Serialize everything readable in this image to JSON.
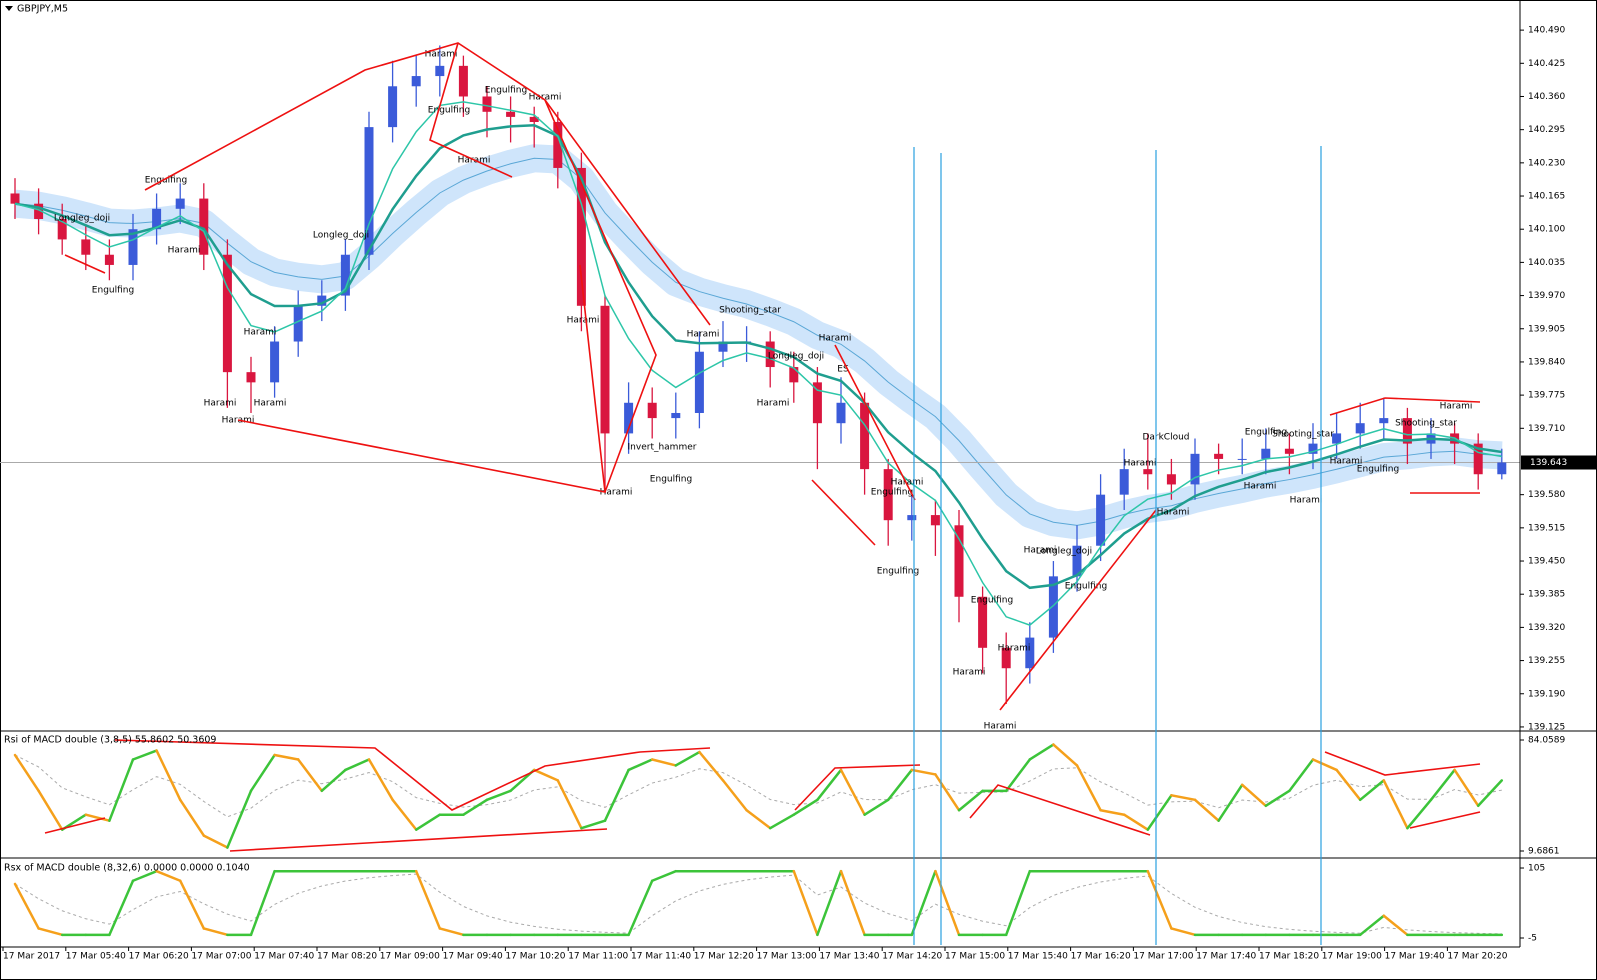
{
  "chart_data": [
    {
      "type": "candlestick",
      "title": "GBPJPY,M5",
      "open": [
        140.17,
        140.15,
        140.12,
        140.08,
        140.05,
        140.03,
        140.1,
        140.14,
        140.16,
        140.05,
        139.82,
        139.8,
        139.88,
        139.95,
        139.97,
        140.05,
        140.3,
        140.38,
        140.4,
        140.42,
        140.36,
        140.33,
        140.32,
        140.31,
        140.22,
        139.95,
        139.7,
        139.76,
        139.73,
        139.74,
        139.86,
        139.88,
        139.88,
        139.83,
        139.8,
        139.72,
        139.76,
        139.63,
        139.53,
        139.54,
        139.52,
        139.38,
        139.28,
        139.24,
        139.3,
        139.42,
        139.48,
        139.58,
        139.63,
        139.62,
        139.6,
        139.66,
        139.65,
        139.65,
        139.67,
        139.66,
        139.68,
        139.7,
        139.72,
        139.73,
        139.68,
        139.7,
        139.68,
        139.62
      ],
      "high": [
        140.2,
        140.18,
        140.15,
        140.11,
        140.08,
        140.13,
        140.17,
        140.19,
        140.19,
        140.08,
        139.85,
        139.91,
        139.98,
        140.0,
        140.08,
        140.33,
        140.43,
        140.44,
        140.46,
        140.44,
        140.38,
        140.36,
        140.34,
        140.33,
        140.25,
        139.97,
        139.8,
        139.79,
        139.78,
        139.9,
        139.92,
        139.91,
        139.9,
        139.86,
        139.83,
        139.81,
        139.78,
        139.65,
        139.58,
        139.57,
        139.55,
        139.4,
        139.31,
        139.33,
        139.45,
        139.52,
        139.62,
        139.67,
        139.7,
        139.65,
        139.69,
        139.68,
        139.69,
        139.71,
        139.7,
        139.72,
        139.74,
        139.76,
        139.77,
        139.75,
        139.73,
        139.72,
        139.7,
        139.67
      ],
      "low": [
        140.12,
        140.09,
        140.05,
        140.02,
        140.0,
        140.0,
        140.07,
        140.11,
        140.02,
        139.75,
        139.74,
        139.77,
        139.85,
        139.92,
        139.94,
        140.02,
        140.27,
        140.34,
        140.36,
        140.32,
        140.28,
        140.27,
        140.26,
        140.18,
        139.9,
        139.59,
        139.66,
        139.69,
        139.69,
        139.71,
        139.83,
        139.84,
        139.79,
        139.76,
        139.63,
        139.68,
        139.58,
        139.48,
        139.49,
        139.46,
        139.33,
        139.23,
        139.17,
        139.21,
        139.27,
        139.39,
        139.45,
        139.55,
        139.59,
        139.57,
        139.57,
        139.62,
        139.62,
        139.62,
        139.62,
        139.63,
        139.65,
        139.67,
        139.69,
        139.64,
        139.65,
        139.64,
        139.59,
        139.61
      ],
      "close": [
        140.15,
        140.12,
        140.08,
        140.05,
        140.03,
        140.1,
        140.14,
        140.16,
        140.05,
        139.82,
        139.8,
        139.88,
        139.95,
        139.97,
        140.05,
        140.3,
        140.38,
        140.4,
        140.42,
        140.36,
        140.33,
        140.32,
        140.31,
        140.22,
        139.95,
        139.7,
        139.76,
        139.73,
        139.74,
        139.86,
        139.88,
        139.88,
        139.83,
        139.8,
        139.72,
        139.76,
        139.63,
        139.53,
        139.54,
        139.52,
        139.38,
        139.28,
        139.24,
        139.3,
        139.42,
        139.48,
        139.58,
        139.63,
        139.62,
        139.6,
        139.66,
        139.65,
        139.65,
        139.67,
        139.66,
        139.68,
        139.7,
        139.72,
        139.73,
        139.68,
        139.7,
        139.68,
        139.62,
        139.643
      ],
      "up_color": "#3b5bd9",
      "down_color": "#d9163f",
      "current_price": 139.643,
      "ylim": [
        139.119,
        140.549
      ],
      "yticks": [
        {
          "value": 140.49,
          "label": "140.490"
        },
        140.425,
        {
          "value": 140.36,
          "label": "140.360"
        },
        140.295,
        {
          "value": 140.23,
          "label": "140.230"
        },
        140.165,
        {
          "value": 140.1,
          "label": "140.100"
        },
        140.035,
        {
          "value": 139.97,
          "label": "139.970"
        },
        139.905,
        {
          "value": 139.84,
          "label": "139.840"
        },
        139.775,
        {
          "value": 139.71,
          "label": "139.710"
        },
        {
          "value": 139.58,
          "label": "139.580"
        },
        139.515,
        {
          "value": 139.45,
          "label": "139.450"
        },
        139.385,
        {
          "value": 139.32,
          "label": "139.320"
        },
        139.255,
        {
          "value": 139.19,
          "label": "139.190"
        },
        139.125
      ]
    },
    {
      "type": "line",
      "title": "Rsi of MACD double (3,8,5) 55.8602 50.3609",
      "values": [
        74,
        50,
        24,
        34,
        30,
        71,
        77,
        44,
        20,
        12,
        50,
        74,
        71,
        50,
        64,
        71,
        44,
        24,
        34,
        34,
        44,
        50,
        64,
        57,
        25,
        30,
        64,
        71,
        67,
        76,
        57,
        37,
        25,
        34,
        44,
        64,
        34,
        44,
        64,
        61,
        37,
        50,
        50,
        71,
        81,
        67,
        37,
        34,
        24,
        47,
        44,
        30,
        54,
        40,
        50,
        71,
        64,
        44,
        57,
        25,
        44,
        64,
        40,
        57
      ],
      "ylim": [
        5.67,
        88.75
      ],
      "yticks": [
        9.6861,
        84.0589
      ]
    },
    {
      "type": "line",
      "title": "Rsx of MACD double (8,32,6) 0.0000 0.0000 0.1040",
      "values": [
        80,
        10,
        0,
        0,
        0,
        85,
        100,
        85,
        10,
        0,
        0,
        100,
        100,
        100,
        100,
        100,
        100,
        100,
        10,
        0,
        0,
        0,
        0,
        0,
        0,
        0,
        0,
        85,
        100,
        100,
        100,
        100,
        100,
        100,
        0,
        100,
        0,
        0,
        0,
        100,
        0,
        0,
        0,
        100,
        100,
        100,
        100,
        100,
        100,
        10,
        0,
        0,
        0,
        0,
        0,
        0,
        0,
        0,
        30,
        0,
        0,
        0,
        0,
        0
      ],
      "ylim": [
        -16,
        117.6
      ],
      "yticks": [
        -5,
        105
      ]
    }
  ],
  "time_labels": [
    "17 Mar 2017",
    "17 Mar 05:40",
    "17 Mar 06:20",
    "17 Mar 07:00",
    "17 Mar 07:40",
    "17 Mar 08:20",
    "17 Mar 09:00",
    "17 Mar 09:40",
    "17 Mar 10:20",
    "17 Mar 11:00",
    "17 Mar 11:40",
    "17 Mar 12:20",
    "17 Mar 13:00",
    "17 Mar 13:40",
    "17 Mar 14:20",
    "17 Mar 15:00",
    "17 Mar 15:40",
    "17 Mar 16:20",
    "17 Mar 17:00",
    "17 Mar 17:40",
    "17 Mar 18:20",
    "17 Mar 19:00",
    "17 Mar 19:40",
    "17 Mar 20:20"
  ],
  "patterns": [
    "Longleg_doji",
    "Engulfing",
    "Engulfing",
    "Harami",
    "Longleg_doji",
    "Harami",
    "Harami",
    "Harami",
    "Harami",
    "Harami",
    "Engulfing",
    "Engulfing",
    "Harami",
    "Harami",
    "Harami",
    "Harami",
    "Invert_hammer",
    "Engulfing",
    "Harami",
    "Shooting_star",
    "Longleg_doji",
    "Harami",
    "ES",
    "Harami",
    "Harami",
    "Engulfing",
    "Engulfing",
    "Engulfing",
    "Harami",
    "Harami",
    "Harami",
    "Harami",
    "Longleg_doji",
    "Engulfing",
    "Harami",
    "DarkCloud",
    "Harami",
    "Engulfing",
    "Shooting_star",
    "Harami",
    "Harami",
    "Harami",
    "Engulfing",
    "Shooting_star",
    "Harami"
  ]
}
